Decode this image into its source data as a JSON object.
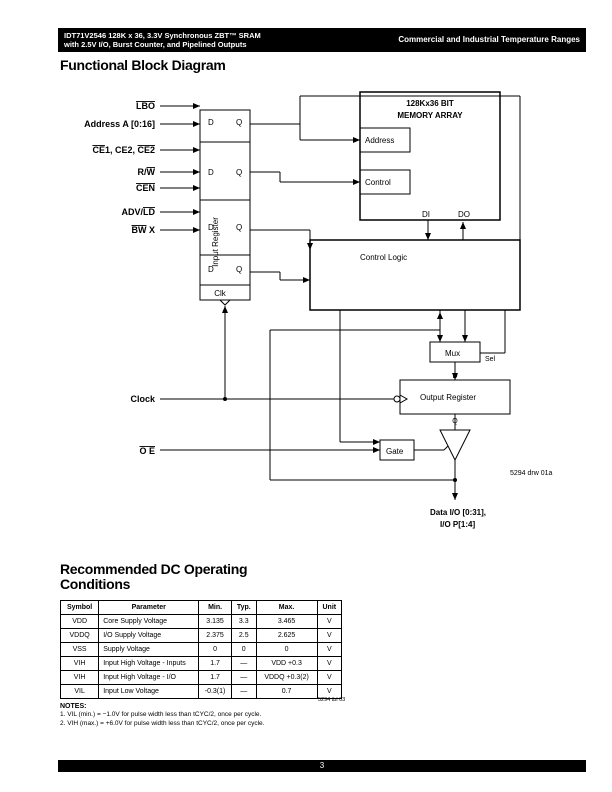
{
  "header": {
    "product_line1": "IDT71V2546 128K x 36, 3.3V Synchronous ZBT™ SRAM",
    "product_line2": "with 2.5V I/O, Burst Counter, and Pipelined Outputs",
    "right": "Commercial and Industrial Temperature Ranges"
  },
  "title_functional": "Functional Block Diagram",
  "diagram": {
    "signals": {
      "lbo": "LBO",
      "addr": "Address A [0:16]",
      "ce": "CE1, CE2, CE2",
      "rw": "R/W",
      "cen": "CEN",
      "advld": "ADV/LD",
      "bwx": "BW X",
      "clock": "Clock",
      "oe": "OE"
    },
    "blocks": {
      "input_reg": "Input Register",
      "memory_line1": "128Kx36 BIT",
      "memory_line2": "MEMORY ARRAY",
      "address": "Address",
      "control": "Control",
      "di": "DI",
      "do": "DO",
      "control_logic": "Control Logic",
      "mux": "Mux",
      "sel": "Sel",
      "d": "D",
      "q": "Q",
      "output_reg": "Output Register",
      "gate": "Gate",
      "clk": "Clk"
    },
    "output_line1": "Data I/O [0:31],",
    "output_line2": "I/O P[1:4]",
    "drawing_id": "5294 drw 01a"
  },
  "title_dc": "Recommended DC Operating Conditions",
  "table": {
    "headers": [
      "Symbol",
      "Parameter",
      "Min.",
      "Typ.",
      "Max.",
      "Unit"
    ],
    "rows": [
      [
        "VDD",
        "Core Supply Voltage",
        "3.135",
        "3.3",
        "3.465",
        "V"
      ],
      [
        "VDDQ",
        "I/O Supply Voltage",
        "2.375",
        "2.5",
        "2.625",
        "V"
      ],
      [
        "VSS",
        "Supply Voltage",
        "0",
        "0",
        "0",
        "V"
      ],
      [
        "VIH",
        "Input High Voltage - Inputs",
        "1.7",
        "—",
        "VDD +0.3",
        "V"
      ],
      [
        "VIH",
        "Input High Voltage - I/O",
        "1.7",
        "—",
        "VDDQ +0.3(2)",
        "V"
      ],
      [
        "VIL",
        "Input Low Voltage",
        "-0.3(1)",
        "—",
        "0.7",
        "V"
      ]
    ],
    "table_id": "5294 tbl 03"
  },
  "notes": {
    "title": "NOTES:",
    "n1": "1.  VIL (min.) = −1.0V for pulse width less than tCYC/2, once per cycle.",
    "n2": "2.  VIH (max.) = +6.0V for pulse width less than tCYC/2, once per cycle."
  },
  "page_number": "3"
}
